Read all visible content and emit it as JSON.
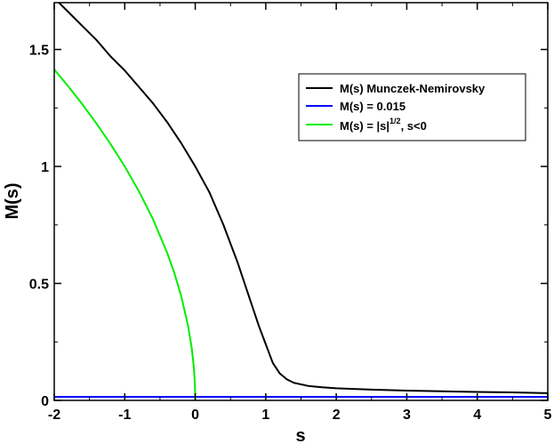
{
  "chart_data": {
    "type": "line",
    "xlabel": "s",
    "ylabel": "M(s)",
    "xlim": [
      -2,
      5
    ],
    "ylim": [
      0,
      1.7
    ],
    "x_ticks": [
      -2,
      -1,
      0,
      1,
      2,
      3,
      4,
      5
    ],
    "x_tick_labels": [
      "-2",
      "-1",
      "0",
      "1",
      "2",
      "3",
      "4",
      "5"
    ],
    "y_ticks": [
      0,
      0.5,
      1,
      1.5
    ],
    "y_tick_labels": [
      "0",
      "0.5",
      "1",
      "1.5"
    ],
    "grid": false,
    "legend_position": "top-right",
    "legend": [
      {
        "text": "M(s) Munczek-Nemirovsky",
        "color": "#000000"
      },
      {
        "text": "M(s) = 0.015",
        "color": "#0000ff"
      },
      {
        "text_before": "M(s) = |s|",
        "superscript": "1/2",
        "text_after": ", s<0",
        "color": "#00ee00"
      }
    ],
    "series": [
      {
        "color": "#000000",
        "x": [
          -2,
          -1.8,
          -1.6,
          -1.4,
          -1.2,
          -1.0,
          -0.8,
          -0.6,
          -0.4,
          -0.2,
          0.0,
          0.2,
          0.4,
          0.6,
          0.8,
          0.9,
          1.0,
          1.1,
          1.2,
          1.3,
          1.4,
          1.6,
          1.8,
          2.0,
          2.5,
          3.0,
          3.5,
          4.0,
          4.5,
          5.0
        ],
        "y": [
          1.72,
          1.66,
          1.6,
          1.54,
          1.47,
          1.41,
          1.34,
          1.27,
          1.19,
          1.1,
          1.0,
          0.89,
          0.75,
          0.59,
          0.41,
          0.32,
          0.24,
          0.16,
          0.115,
          0.09,
          0.075,
          0.062,
          0.056,
          0.052,
          0.046,
          0.042,
          0.039,
          0.036,
          0.034,
          0.031
        ]
      },
      {
        "color": "#0000ff",
        "x": [
          -2,
          5
        ],
        "y": [
          0.015,
          0.015
        ]
      },
      {
        "color": "#00ee00",
        "x": [
          -2,
          -1.8,
          -1.6,
          -1.4,
          -1.2,
          -1.0,
          -0.8,
          -0.6,
          -0.4,
          -0.3,
          -0.2,
          -0.1,
          -0.05,
          -0.02,
          -0.005,
          0.0
        ],
        "y": [
          1.414,
          1.342,
          1.265,
          1.183,
          1.095,
          1.0,
          0.894,
          0.775,
          0.632,
          0.548,
          0.447,
          0.316,
          0.224,
          0.141,
          0.071,
          0.0
        ]
      }
    ]
  }
}
